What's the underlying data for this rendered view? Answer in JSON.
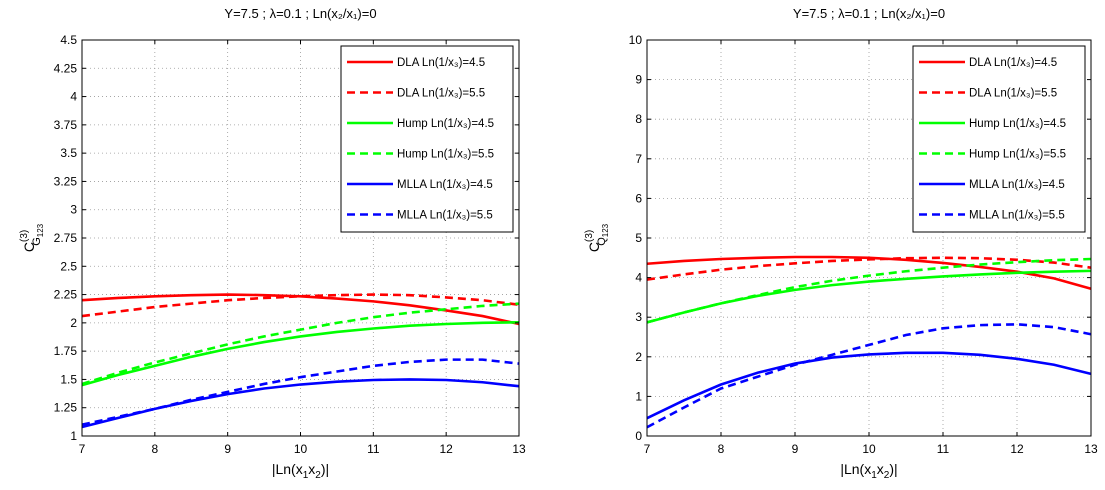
{
  "chart_data": [
    {
      "type": "line",
      "title": "Y=7.5 ; λ=0.1 ; Ln(x₂/x₁)=0",
      "xlabel": "|Ln(x₁x₂)|",
      "ylabel": "C(3) G123",
      "xlim": [
        7,
        13
      ],
      "ylim": [
        1,
        4.5
      ],
      "xticks": [
        "7",
        "8",
        "9",
        "10",
        "11",
        "12",
        "13"
      ],
      "yticks": [
        "1",
        "1.25",
        "1.5",
        "1.75",
        "2",
        "2.25",
        "2.5",
        "2.75",
        "3",
        "3.25",
        "3.5",
        "3.75",
        "4",
        "4.25",
        "4.5"
      ],
      "grid": true,
      "legend_position": "top-right",
      "x": [
        7,
        7.5,
        8,
        8.5,
        9,
        9.5,
        10,
        10.5,
        11,
        11.5,
        12,
        12.5,
        13
      ],
      "series": [
        {
          "name": "DLA Ln(1/x₃)=4.5",
          "color": "#ff0000",
          "dash": "solid",
          "values": [
            2.2,
            2.22,
            2.235,
            2.245,
            2.25,
            2.245,
            2.235,
            2.215,
            2.19,
            2.155,
            2.11,
            2.06,
            1.99
          ]
        },
        {
          "name": "DLA Ln(1/x₃)=5.5",
          "color": "#ff0000",
          "dash": "dashed",
          "values": [
            2.06,
            2.1,
            2.14,
            2.17,
            2.2,
            2.22,
            2.235,
            2.245,
            2.25,
            2.245,
            2.225,
            2.2,
            2.16
          ]
        },
        {
          "name": "Hump Ln(1/x₃)=4.5",
          "color": "#00ff00",
          "dash": "solid",
          "values": [
            1.45,
            1.54,
            1.62,
            1.7,
            1.77,
            1.83,
            1.88,
            1.92,
            1.95,
            1.975,
            1.99,
            2.0,
            2.005
          ]
        },
        {
          "name": "Hump Ln(1/x₃)=5.5",
          "color": "#00ff00",
          "dash": "dashed",
          "values": [
            1.46,
            1.56,
            1.65,
            1.73,
            1.81,
            1.88,
            1.94,
            2.0,
            2.05,
            2.09,
            2.12,
            2.15,
            2.17
          ]
        },
        {
          "name": "MLLA Ln(1/x₃)=4.5",
          "color": "#0000ff",
          "dash": "solid",
          "values": [
            1.08,
            1.16,
            1.24,
            1.31,
            1.37,
            1.42,
            1.455,
            1.48,
            1.495,
            1.5,
            1.495,
            1.475,
            1.44
          ]
        },
        {
          "name": "MLLA Ln(1/x₃)=5.5",
          "color": "#0000ff",
          "dash": "dashed",
          "values": [
            1.1,
            1.17,
            1.24,
            1.32,
            1.39,
            1.46,
            1.52,
            1.57,
            1.62,
            1.655,
            1.675,
            1.675,
            1.64
          ]
        }
      ]
    },
    {
      "type": "line",
      "title": "Y=7.5 ; λ=0.1 ; Ln(x₂/x₁)=0",
      "xlabel": "|Ln(x₁x₂)|",
      "ylabel": "C(3) Q123",
      "xlim": [
        7,
        13
      ],
      "ylim": [
        0,
        10
      ],
      "xticks": [
        "7",
        "8",
        "9",
        "10",
        "11",
        "12",
        "13"
      ],
      "yticks": [
        "0",
        "1",
        "2",
        "3",
        "4",
        "5",
        "6",
        "7",
        "8",
        "9",
        "10"
      ],
      "grid": true,
      "legend_position": "top-right",
      "x": [
        7,
        7.5,
        8,
        8.5,
        9,
        9.5,
        10,
        10.5,
        11,
        11.5,
        12,
        12.5,
        13
      ],
      "series": [
        {
          "name": "DLA Ln(1/x₃)=4.5",
          "color": "#ff0000",
          "dash": "solid",
          "values": [
            4.35,
            4.42,
            4.47,
            4.5,
            4.52,
            4.52,
            4.5,
            4.45,
            4.37,
            4.27,
            4.15,
            3.98,
            3.72
          ]
        },
        {
          "name": "DLA Ln(1/x₃)=5.5",
          "color": "#ff0000",
          "dash": "dashed",
          "values": [
            3.95,
            4.08,
            4.2,
            4.29,
            4.36,
            4.42,
            4.46,
            4.49,
            4.5,
            4.49,
            4.45,
            4.38,
            4.25
          ]
        },
        {
          "name": "Hump Ln(1/x₃)=4.5",
          "color": "#00ff00",
          "dash": "solid",
          "values": [
            2.87,
            3.12,
            3.35,
            3.54,
            3.69,
            3.81,
            3.9,
            3.97,
            4.03,
            4.08,
            4.12,
            4.15,
            4.17
          ]
        },
        {
          "name": "Hump Ln(1/x₃)=5.5",
          "color": "#00ff00",
          "dash": "dashed",
          "values": [
            2.87,
            3.12,
            3.35,
            3.56,
            3.76,
            3.92,
            4.05,
            4.16,
            4.25,
            4.33,
            4.39,
            4.44,
            4.47
          ]
        },
        {
          "name": "MLLA Ln(1/x₃)=4.5",
          "color": "#0000ff",
          "dash": "solid",
          "values": [
            0.45,
            0.9,
            1.3,
            1.6,
            1.83,
            1.98,
            2.06,
            2.1,
            2.1,
            2.05,
            1.95,
            1.8,
            1.57
          ]
        },
        {
          "name": "MLLA Ln(1/x₃)=5.5",
          "color": "#0000ff",
          "dash": "dashed",
          "values": [
            0.22,
            0.72,
            1.2,
            1.5,
            1.8,
            2.05,
            2.3,
            2.55,
            2.72,
            2.8,
            2.82,
            2.75,
            2.57
          ]
        }
      ]
    }
  ]
}
